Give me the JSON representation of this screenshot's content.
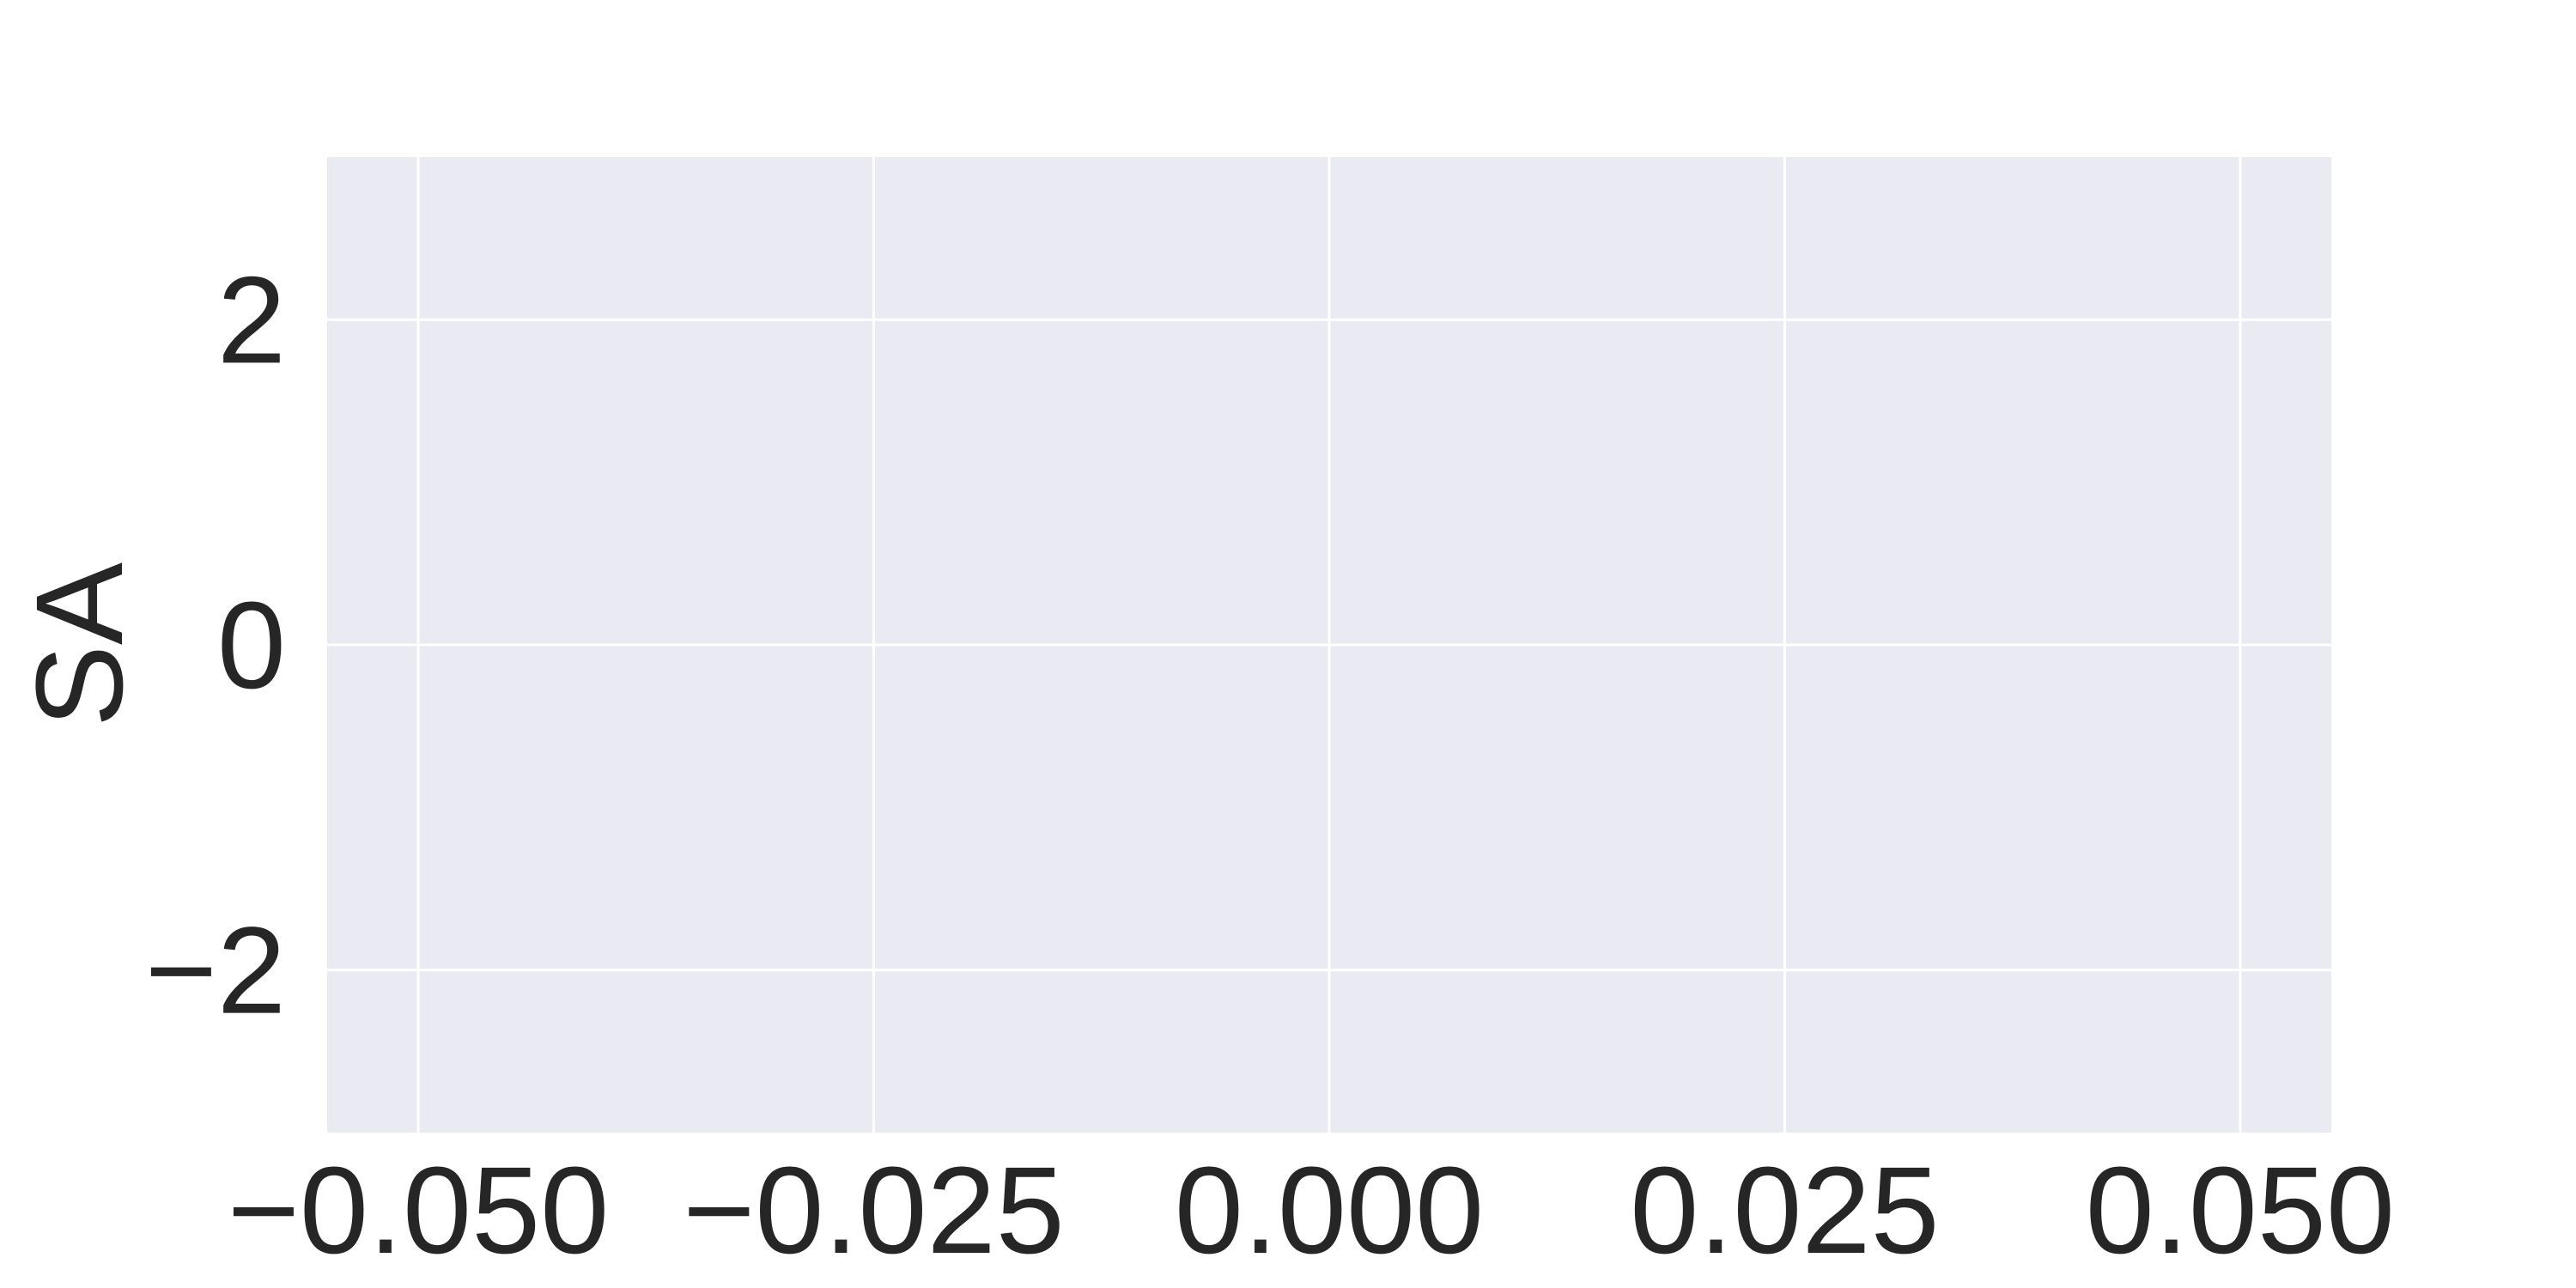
{
  "chart_data": {
    "type": "scatter",
    "title": "",
    "xlabel": "",
    "ylabel": "SA",
    "xlim": [
      -0.055,
      0.055
    ],
    "ylim": [
      -3,
      3
    ],
    "x_ticks": [
      -0.05,
      -0.025,
      0.0,
      0.025,
      0.05
    ],
    "x_tick_labels": [
      "−0.050",
      "−0.025",
      "0.000",
      "0.025",
      "0.050"
    ],
    "y_ticks": [
      -2,
      0,
      2
    ],
    "y_tick_labels": [
      "−2",
      "0",
      "2"
    ],
    "grid": true,
    "series": [
      {
        "x": [],
        "y": []
      }
    ],
    "colors": {
      "background": "#eaeaf2",
      "grid": "#ffffff",
      "text": "#262626"
    }
  }
}
